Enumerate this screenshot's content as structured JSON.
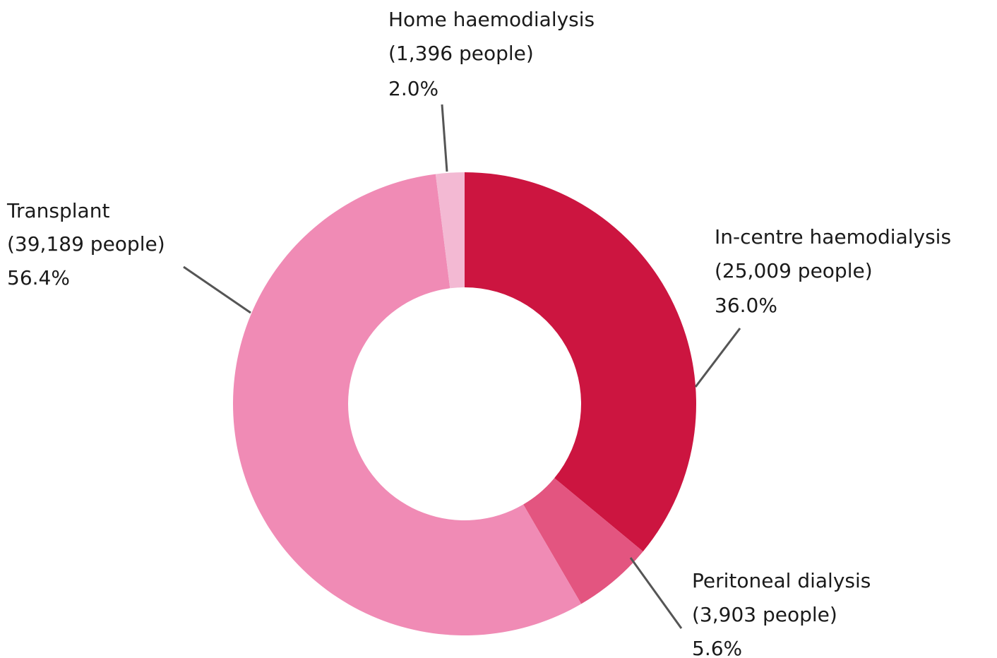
{
  "chart_data": {
    "type": "donut",
    "categories": [
      "In-centre haemodialysis",
      "Peritoneal dialysis",
      "Transplant",
      "Home haemodialysis"
    ],
    "people_labels": [
      "(25,009 people)",
      "(3,903 people)",
      "(39,189 people)",
      "(1,396 people)"
    ],
    "values": [
      36.0,
      5.6,
      56.4,
      2.0
    ],
    "value_labels": [
      "36.0%",
      "5.6%",
      "56.4%",
      "2.0%"
    ],
    "colors": [
      "#cc1540",
      "#e35580",
      "#f08bb5",
      "#f3b9d3"
    ]
  }
}
